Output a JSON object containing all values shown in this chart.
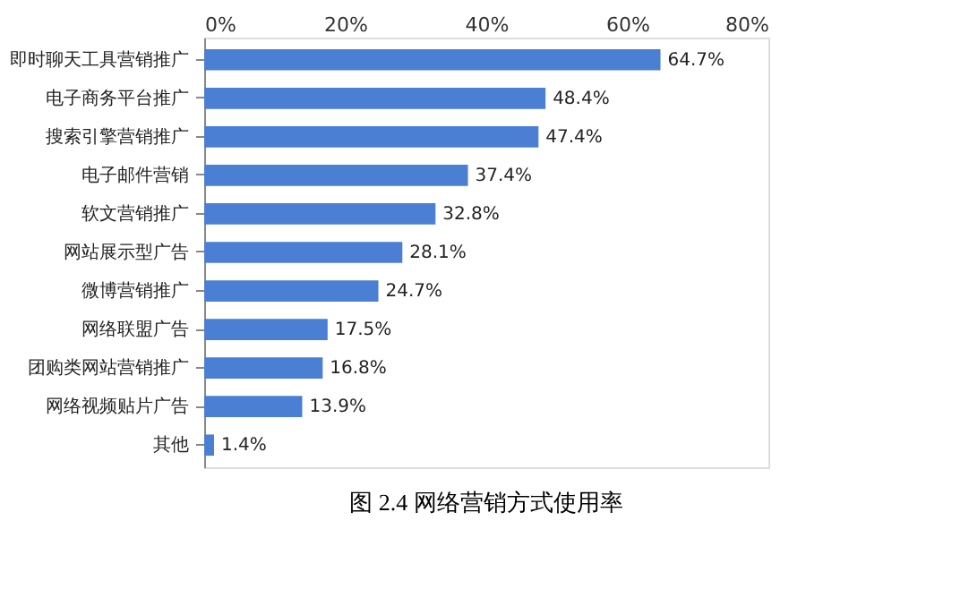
{
  "chart_data": {
    "type": "bar",
    "orientation": "horizontal",
    "title": "图 2.4 网络营销方式使用率",
    "categories": [
      "即时聊天工具营销推广",
      "电子商务平台推广",
      "搜索引擎营销推广",
      "电子邮件营销",
      "软文营销推广",
      "网站展示型广告",
      "微博营销推广",
      "网络联盟广告",
      "团购类网站营销推广",
      "网络视频贴片广告",
      "其他"
    ],
    "values": [
      64.7,
      48.4,
      47.4,
      37.4,
      32.8,
      28.1,
      24.7,
      17.5,
      16.8,
      13.9,
      1.4
    ],
    "value_labels": [
      "64.7%",
      "48.4%",
      "47.4%",
      "37.4%",
      "32.8%",
      "28.1%",
      "24.7%",
      "17.5%",
      "16.8%",
      "13.9%",
      "1.4%"
    ],
    "color": "#4a7fd4",
    "xlim": [
      0,
      80
    ],
    "xticks": [
      {
        "value": 0,
        "label": "0%"
      },
      {
        "value": 20,
        "label": "20%"
      },
      {
        "value": 40,
        "label": "40%"
      },
      {
        "value": 60,
        "label": "60%"
      },
      {
        "value": 80,
        "label": "80%"
      }
    ],
    "grid": false
  }
}
